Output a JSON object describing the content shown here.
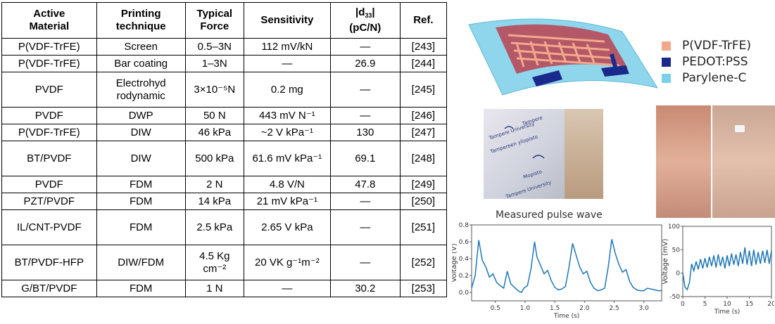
{
  "table": {
    "headers": [
      "Active Material",
      "Printing technique",
      "Typical Force",
      "Sensitivity",
      "|d33| (pC/N)",
      "Ref."
    ],
    "rows": [
      {
        "material": "P(VDF-TrFE)",
        "technique": "Screen",
        "force": "0.5–3N",
        "sensitivity": "112 mV/kN",
        "d33": "—",
        "ref": "[243]"
      },
      {
        "material": "P(VDF-TrFE)",
        "technique": "Bar coating",
        "force": "1–3N",
        "sensitivity": "—",
        "d33": "26.9",
        "ref": "[244]"
      },
      {
        "material": "PVDF",
        "technique": "Electrohyd rodynamic",
        "force": "3×10⁻⁵N",
        "sensitivity": "0.2 mg",
        "d33": "—",
        "ref": "[245]"
      },
      {
        "material": "PVDF",
        "technique": "DWP",
        "force": "50 N",
        "sensitivity": "443 mV N⁻¹",
        "d33": "—",
        "ref": "[246]"
      },
      {
        "material": "P(VDF-TrFE)",
        "technique": "DIW",
        "force": "46 kPa",
        "sensitivity": "~2 V kPa⁻¹",
        "d33": "130",
        "ref": "[247]"
      },
      {
        "material": "BT/PVDF",
        "technique": "DIW",
        "force": "500 kPa",
        "sensitivity": "61.6 mV kPa⁻¹",
        "d33": "69.1",
        "ref": "[248]"
      },
      {
        "material": "PVDF",
        "technique": "FDM",
        "force": "2 N",
        "sensitivity": "4.8 V/N",
        "d33": "47.8",
        "ref": "[249]"
      },
      {
        "material": "PZT/PVDF",
        "technique": "FDM",
        "force": "14 kPa",
        "sensitivity": "21 mV kPa⁻¹",
        "d33": "—",
        "ref": "[250]"
      },
      {
        "material": "IL/CNT-PVDF",
        "technique": "FDM",
        "force": "2.5 kPa",
        "sensitivity": "2.65 V kPa",
        "d33": "—",
        "ref": "[251]"
      },
      {
        "material": "BT/PVDF-HFP",
        "technique": "DIW/FDM",
        "force": "4.5 Kg cm⁻²",
        "sensitivity": "20 VK g⁻¹m⁻²",
        "d33": "—",
        "ref": "[252]"
      },
      {
        "material": "G/BT/PVDF",
        "technique": "FDM",
        "force": "1 N",
        "sensitivity": "—",
        "d33": "30.2",
        "ref": "[253]"
      }
    ]
  },
  "figure": {
    "legend": [
      {
        "label": "P(VDF-TrFE)",
        "color": "#f2a98b"
      },
      {
        "label": "PEDOT:PSS",
        "color": "#1a2a8c"
      },
      {
        "label": "Parylene-C",
        "color": "#7dd0ea"
      }
    ],
    "photo_texts": [
      "Tampere",
      "Tampere University",
      "Tampere University",
      "Mopisto",
      "Tampereen yliopisto"
    ],
    "icons": {
      "sensor_film": "sensor-film-illustration",
      "wrist_photos": "wrist-photo"
    }
  },
  "chart_data": [
    {
      "type": "line",
      "title": "Measured pulse wave",
      "xlabel": "Time (s)",
      "ylabel": "Voltage (V)",
      "xlim": [
        0.1,
        3.3
      ],
      "ylim": [
        -0.1,
        0.8
      ],
      "xticks": [
        "0.5",
        "1.0",
        "1.5",
        "2.0",
        "2.5",
        "3.0"
      ],
      "yticks": [
        "0.0",
        "0.2",
        "0.4",
        "0.6",
        "0.8"
      ],
      "series": [
        {
          "color": "#1f77b4",
          "x": [
            0.1,
            0.16,
            0.22,
            0.28,
            0.34,
            0.4,
            0.46,
            0.52,
            0.58,
            0.64,
            0.7,
            0.76,
            0.82,
            0.88,
            0.94,
            0.98,
            1.04,
            1.1,
            1.16,
            1.2,
            1.26,
            1.32,
            1.38,
            1.44,
            1.5,
            1.56,
            1.62,
            1.68,
            1.74,
            1.8,
            1.86,
            1.92,
            1.98,
            2.04,
            2.1,
            2.16,
            2.22,
            2.28,
            2.34,
            2.4,
            2.46,
            2.52,
            2.58,
            2.64,
            2.7,
            2.76,
            2.82,
            2.88,
            2.94,
            3.0,
            3.06,
            3.12,
            3.18,
            3.24,
            3.3
          ],
          "y": [
            0.05,
            0.2,
            0.62,
            0.38,
            0.3,
            0.18,
            0.22,
            0.12,
            0.08,
            0.05,
            0.25,
            0.1,
            0.06,
            0.02,
            0.0,
            0.05,
            0.08,
            0.28,
            0.6,
            0.42,
            0.32,
            0.22,
            0.26,
            0.14,
            0.06,
            0.03,
            0.04,
            0.07,
            0.3,
            0.58,
            0.44,
            0.3,
            0.22,
            0.25,
            0.12,
            0.05,
            0.02,
            0.03,
            0.05,
            0.3,
            0.63,
            0.46,
            0.33,
            0.24,
            0.27,
            0.13,
            0.06,
            0.03,
            0.02,
            0.02,
            0.05,
            0.04,
            0.03,
            0.02,
            0.02
          ]
        }
      ]
    },
    {
      "type": "line",
      "title": "",
      "xlabel": "Time (s)",
      "ylabel": "Voltage (mV)",
      "xlim": [
        0,
        20
      ],
      "ylim": [
        -50,
        100
      ],
      "xticks": [
        "0",
        "5",
        "10",
        "15",
        "20"
      ],
      "yticks": [
        "-50",
        "0",
        "50",
        "100"
      ],
      "series": [
        {
          "color": "#1f77b4",
          "x": [
            0,
            0.5,
            1,
            1.5,
            2,
            2.5,
            3,
            3.5,
            4,
            4.5,
            5,
            5.5,
            6,
            6.5,
            7,
            7.5,
            8,
            8.5,
            9,
            9.5,
            10,
            10.5,
            11,
            11.5,
            12,
            12.5,
            13,
            13.5,
            14,
            14.5,
            15,
            15.5,
            16,
            16.5,
            17,
            17.5,
            18,
            18.5,
            19,
            19.5,
            20
          ],
          "y": [
            0,
            -30,
            -35,
            -20,
            20,
            5,
            25,
            8,
            30,
            10,
            32,
            12,
            35,
            15,
            38,
            12,
            40,
            15,
            35,
            10,
            38,
            15,
            42,
            18,
            40,
            15,
            45,
            20,
            55,
            18,
            48,
            15,
            50,
            18,
            45,
            20,
            48,
            22,
            50,
            20,
            48
          ]
        }
      ]
    }
  ]
}
